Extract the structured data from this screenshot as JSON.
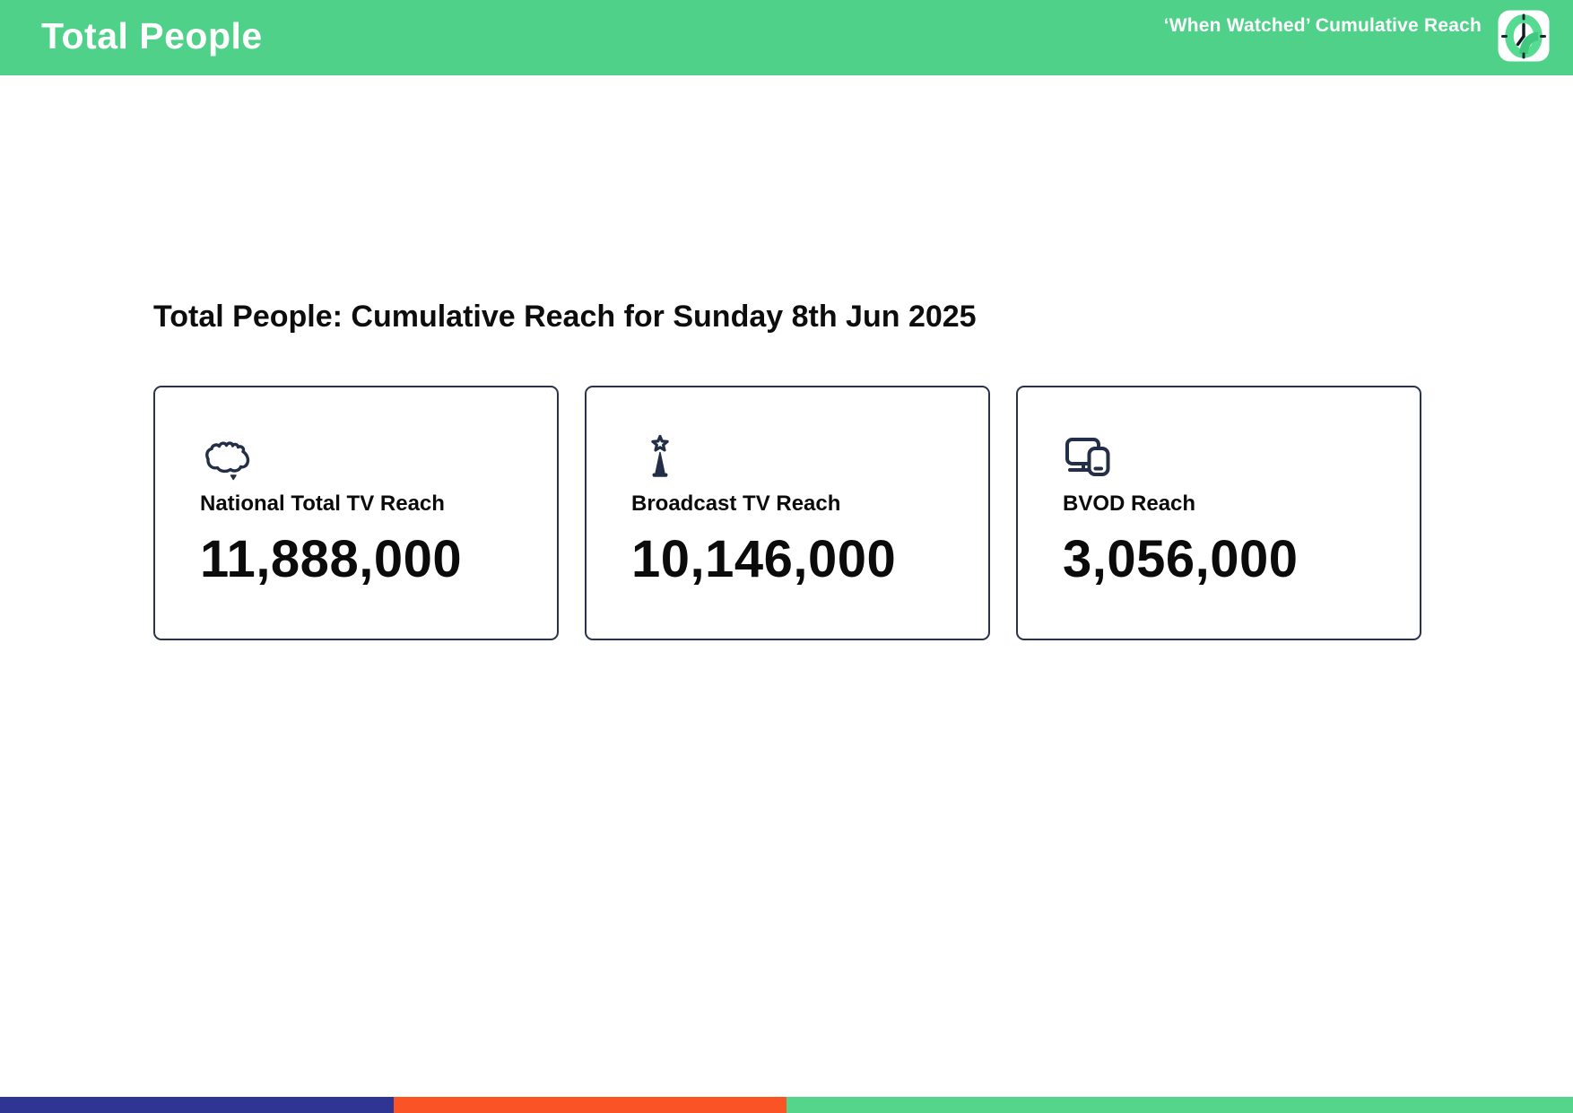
{
  "header": {
    "title": "Total People",
    "subtitle": "‘When Watched’ Cumulative Reach"
  },
  "main": {
    "heading": "Total People: Cumulative Reach for Sunday 8th Jun 2025",
    "cards": [
      {
        "icon": "australia-map-icon",
        "label": "National Total TV Reach",
        "value": "11,888,000"
      },
      {
        "icon": "broadcast-tower-icon",
        "label": "Broadcast TV Reach",
        "value": "10,146,000"
      },
      {
        "icon": "monitor-smartphone-icon",
        "label": "BVOD Reach",
        "value": "3,056,000"
      }
    ]
  },
  "footer": {
    "segments": [
      {
        "name": "blue-segment",
        "color": "#2e3593",
        "width_percent": 25
      },
      {
        "name": "orange-segment",
        "color": "#fa5426",
        "width_percent": 25
      },
      {
        "name": "green-segment",
        "color": "#55d48b",
        "width_percent": 50
      }
    ]
  },
  "colors": {
    "header_green": "#4fd189",
    "icon_navy": "#232e47",
    "card_border": "#2a3349",
    "clock_ring_green": "#57da92",
    "clock_ring_shade": "#41c87f"
  }
}
